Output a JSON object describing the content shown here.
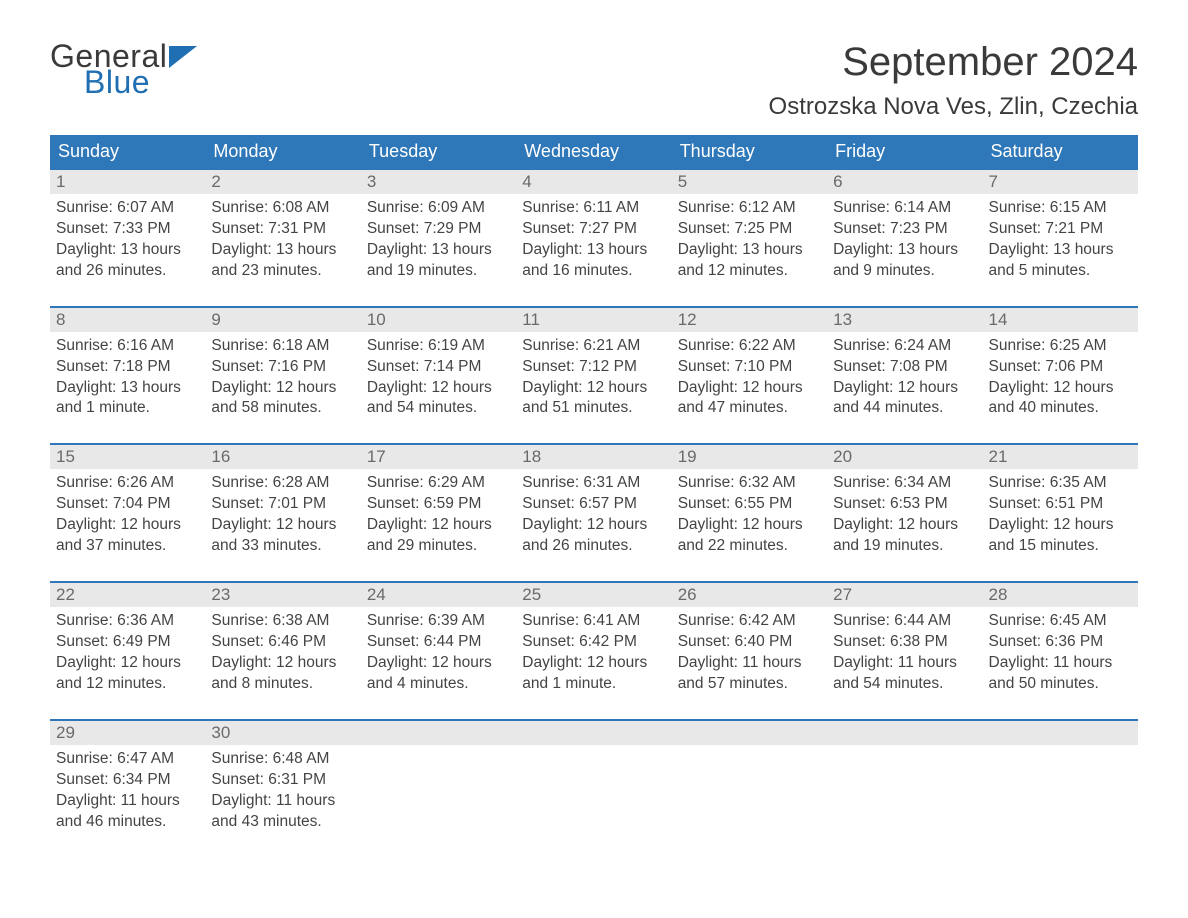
{
  "brand": {
    "general": "General",
    "blue": "Blue"
  },
  "title": "September 2024",
  "location": "Ostrozska Nova Ves, Zlin, Czechia",
  "colors": {
    "header_bg": "#2e77b8",
    "header_text": "#ffffff",
    "daynum_bg": "#e8e8e8",
    "daynum_text": "#6a6a6a",
    "body_text": "#444444",
    "week_border": "#2e77b8",
    "logo_blue": "#1f6fb2",
    "background": "#ffffff"
  },
  "typography": {
    "title_fontsize": 40,
    "location_fontsize": 24,
    "weekday_fontsize": 18,
    "daynum_fontsize": 17,
    "body_fontsize": 15.5
  },
  "weekdays": [
    "Sunday",
    "Monday",
    "Tuesday",
    "Wednesday",
    "Thursday",
    "Friday",
    "Saturday"
  ],
  "weeks": [
    [
      {
        "n": "1",
        "sunrise": "Sunrise: 6:07 AM",
        "sunset": "Sunset: 7:33 PM",
        "d1": "Daylight: 13 hours",
        "d2": "and 26 minutes."
      },
      {
        "n": "2",
        "sunrise": "Sunrise: 6:08 AM",
        "sunset": "Sunset: 7:31 PM",
        "d1": "Daylight: 13 hours",
        "d2": "and 23 minutes."
      },
      {
        "n": "3",
        "sunrise": "Sunrise: 6:09 AM",
        "sunset": "Sunset: 7:29 PM",
        "d1": "Daylight: 13 hours",
        "d2": "and 19 minutes."
      },
      {
        "n": "4",
        "sunrise": "Sunrise: 6:11 AM",
        "sunset": "Sunset: 7:27 PM",
        "d1": "Daylight: 13 hours",
        "d2": "and 16 minutes."
      },
      {
        "n": "5",
        "sunrise": "Sunrise: 6:12 AM",
        "sunset": "Sunset: 7:25 PM",
        "d1": "Daylight: 13 hours",
        "d2": "and 12 minutes."
      },
      {
        "n": "6",
        "sunrise": "Sunrise: 6:14 AM",
        "sunset": "Sunset: 7:23 PM",
        "d1": "Daylight: 13 hours",
        "d2": "and 9 minutes."
      },
      {
        "n": "7",
        "sunrise": "Sunrise: 6:15 AM",
        "sunset": "Sunset: 7:21 PM",
        "d1": "Daylight: 13 hours",
        "d2": "and 5 minutes."
      }
    ],
    [
      {
        "n": "8",
        "sunrise": "Sunrise: 6:16 AM",
        "sunset": "Sunset: 7:18 PM",
        "d1": "Daylight: 13 hours",
        "d2": "and 1 minute."
      },
      {
        "n": "9",
        "sunrise": "Sunrise: 6:18 AM",
        "sunset": "Sunset: 7:16 PM",
        "d1": "Daylight: 12 hours",
        "d2": "and 58 minutes."
      },
      {
        "n": "10",
        "sunrise": "Sunrise: 6:19 AM",
        "sunset": "Sunset: 7:14 PM",
        "d1": "Daylight: 12 hours",
        "d2": "and 54 minutes."
      },
      {
        "n": "11",
        "sunrise": "Sunrise: 6:21 AM",
        "sunset": "Sunset: 7:12 PM",
        "d1": "Daylight: 12 hours",
        "d2": "and 51 minutes."
      },
      {
        "n": "12",
        "sunrise": "Sunrise: 6:22 AM",
        "sunset": "Sunset: 7:10 PM",
        "d1": "Daylight: 12 hours",
        "d2": "and 47 minutes."
      },
      {
        "n": "13",
        "sunrise": "Sunrise: 6:24 AM",
        "sunset": "Sunset: 7:08 PM",
        "d1": "Daylight: 12 hours",
        "d2": "and 44 minutes."
      },
      {
        "n": "14",
        "sunrise": "Sunrise: 6:25 AM",
        "sunset": "Sunset: 7:06 PM",
        "d1": "Daylight: 12 hours",
        "d2": "and 40 minutes."
      }
    ],
    [
      {
        "n": "15",
        "sunrise": "Sunrise: 6:26 AM",
        "sunset": "Sunset: 7:04 PM",
        "d1": "Daylight: 12 hours",
        "d2": "and 37 minutes."
      },
      {
        "n": "16",
        "sunrise": "Sunrise: 6:28 AM",
        "sunset": "Sunset: 7:01 PM",
        "d1": "Daylight: 12 hours",
        "d2": "and 33 minutes."
      },
      {
        "n": "17",
        "sunrise": "Sunrise: 6:29 AM",
        "sunset": "Sunset: 6:59 PM",
        "d1": "Daylight: 12 hours",
        "d2": "and 29 minutes."
      },
      {
        "n": "18",
        "sunrise": "Sunrise: 6:31 AM",
        "sunset": "Sunset: 6:57 PM",
        "d1": "Daylight: 12 hours",
        "d2": "and 26 minutes."
      },
      {
        "n": "19",
        "sunrise": "Sunrise: 6:32 AM",
        "sunset": "Sunset: 6:55 PM",
        "d1": "Daylight: 12 hours",
        "d2": "and 22 minutes."
      },
      {
        "n": "20",
        "sunrise": "Sunrise: 6:34 AM",
        "sunset": "Sunset: 6:53 PM",
        "d1": "Daylight: 12 hours",
        "d2": "and 19 minutes."
      },
      {
        "n": "21",
        "sunrise": "Sunrise: 6:35 AM",
        "sunset": "Sunset: 6:51 PM",
        "d1": "Daylight: 12 hours",
        "d2": "and 15 minutes."
      }
    ],
    [
      {
        "n": "22",
        "sunrise": "Sunrise: 6:36 AM",
        "sunset": "Sunset: 6:49 PM",
        "d1": "Daylight: 12 hours",
        "d2": "and 12 minutes."
      },
      {
        "n": "23",
        "sunrise": "Sunrise: 6:38 AM",
        "sunset": "Sunset: 6:46 PM",
        "d1": "Daylight: 12 hours",
        "d2": "and 8 minutes."
      },
      {
        "n": "24",
        "sunrise": "Sunrise: 6:39 AM",
        "sunset": "Sunset: 6:44 PM",
        "d1": "Daylight: 12 hours",
        "d2": "and 4 minutes."
      },
      {
        "n": "25",
        "sunrise": "Sunrise: 6:41 AM",
        "sunset": "Sunset: 6:42 PM",
        "d1": "Daylight: 12 hours",
        "d2": "and 1 minute."
      },
      {
        "n": "26",
        "sunrise": "Sunrise: 6:42 AM",
        "sunset": "Sunset: 6:40 PM",
        "d1": "Daylight: 11 hours",
        "d2": "and 57 minutes."
      },
      {
        "n": "27",
        "sunrise": "Sunrise: 6:44 AM",
        "sunset": "Sunset: 6:38 PM",
        "d1": "Daylight: 11 hours",
        "d2": "and 54 minutes."
      },
      {
        "n": "28",
        "sunrise": "Sunrise: 6:45 AM",
        "sunset": "Sunset: 6:36 PM",
        "d1": "Daylight: 11 hours",
        "d2": "and 50 minutes."
      }
    ],
    [
      {
        "n": "29",
        "sunrise": "Sunrise: 6:47 AM",
        "sunset": "Sunset: 6:34 PM",
        "d1": "Daylight: 11 hours",
        "d2": "and 46 minutes."
      },
      {
        "n": "30",
        "sunrise": "Sunrise: 6:48 AM",
        "sunset": "Sunset: 6:31 PM",
        "d1": "Daylight: 11 hours",
        "d2": "and 43 minutes."
      },
      {
        "empty": true
      },
      {
        "empty": true
      },
      {
        "empty": true
      },
      {
        "empty": true
      },
      {
        "empty": true
      }
    ]
  ]
}
